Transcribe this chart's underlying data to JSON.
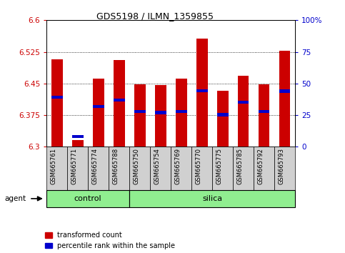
{
  "title": "GDS5198 / ILMN_1359855",
  "samples": [
    "GSM665761",
    "GSM665771",
    "GSM665774",
    "GSM665788",
    "GSM665750",
    "GSM665754",
    "GSM665769",
    "GSM665770",
    "GSM665775",
    "GSM665785",
    "GSM665792",
    "GSM665793"
  ],
  "groups": [
    "control",
    "control",
    "control",
    "control",
    "silica",
    "silica",
    "silica",
    "silica",
    "silica",
    "silica",
    "silica",
    "silica"
  ],
  "red_values": [
    6.507,
    6.315,
    6.462,
    6.505,
    6.448,
    6.447,
    6.462,
    6.557,
    6.432,
    6.468,
    6.448,
    6.528
  ],
  "blue_values": [
    6.418,
    6.325,
    6.395,
    6.41,
    6.383,
    6.381,
    6.383,
    6.433,
    6.376,
    6.405,
    6.384,
    6.432
  ],
  "ylim_left": [
    6.3,
    6.6
  ],
  "yticks_left": [
    6.3,
    6.375,
    6.45,
    6.525,
    6.6
  ],
  "yticks_right": [
    0,
    25,
    50,
    75,
    100
  ],
  "bar_bottom": 6.3,
  "bar_color_red": "#cc0000",
  "bar_color_blue": "#0000cc",
  "group_color": "#90ee90",
  "sample_box_color": "#d0d0d0",
  "plot_bg_color": "#ffffff",
  "legend_red_label": "transformed count",
  "legend_blue_label": "percentile rank within the sample",
  "agent_label": "agent",
  "ylabel_left_color": "#cc0000",
  "ylabel_right_color": "#0000cc",
  "title_fontsize": 9,
  "tick_fontsize": 7.5,
  "sample_fontsize": 6.0,
  "group_fontsize": 8,
  "legend_fontsize": 7
}
